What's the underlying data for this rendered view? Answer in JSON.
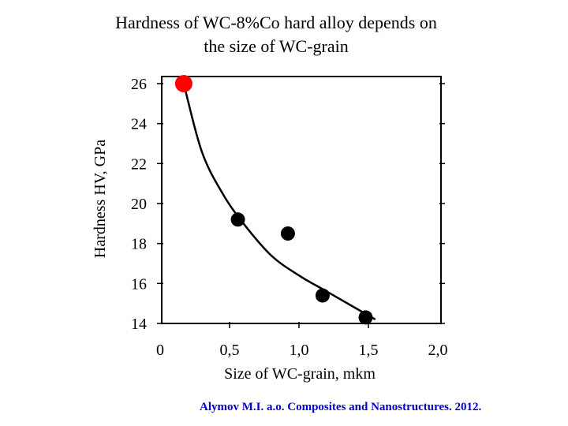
{
  "title_line1": "Hardness of WC-8%Co hard alloy depends on",
  "title_line2": "the size of WC-grain",
  "citation": "Alymov M.I. a.o. Composites and Nanostructures. 2012.",
  "colors": {
    "axis": "#000000",
    "points": "#000000",
    "highlight_point": "#ff0000",
    "citation": "#0000cc"
  },
  "chart_data": {
    "type": "scatter",
    "title": "Hardness of WC-8%Co hard alloy depends on the size of WC-grain",
    "xlabel": "Size of WC-grain,  mkm",
    "ylabel": "Hardness HV, GPa",
    "xlim": [
      0,
      2.0
    ],
    "ylim": [
      14,
      26
    ],
    "x_ticks": [
      {
        "value": 0,
        "label": "0"
      },
      {
        "value": 0.5,
        "label": "0,5"
      },
      {
        "value": 1.0,
        "label": "1,0"
      },
      {
        "value": 1.5,
        "label": "1,5"
      },
      {
        "value": 2.0,
        "label": "2,0"
      }
    ],
    "y_ticks": [
      {
        "value": 14,
        "label": "14"
      },
      {
        "value": 16,
        "label": "16"
      },
      {
        "value": 18,
        "label": "18"
      },
      {
        "value": 20,
        "label": "20"
      },
      {
        "value": 22,
        "label": "22"
      },
      {
        "value": 24,
        "label": "24"
      },
      {
        "value": 26,
        "label": "26"
      }
    ],
    "grid": false,
    "points": [
      {
        "x": 0.17,
        "y": 26.0,
        "color": "#ff0000"
      },
      {
        "x": 0.56,
        "y": 19.2,
        "color": "#000000"
      },
      {
        "x": 0.92,
        "y": 18.5,
        "color": "#000000"
      },
      {
        "x": 1.17,
        "y": 15.4,
        "color": "#000000"
      },
      {
        "x": 1.48,
        "y": 14.3,
        "color": "#000000"
      }
    ],
    "trend_curve": {
      "x": [
        0.17,
        0.3,
        0.45,
        0.6,
        0.8,
        1.0,
        1.2,
        1.4,
        1.55
      ],
      "y": [
        26.0,
        22.6,
        20.5,
        19.0,
        17.4,
        16.4,
        15.6,
        14.8,
        14.2
      ]
    }
  }
}
